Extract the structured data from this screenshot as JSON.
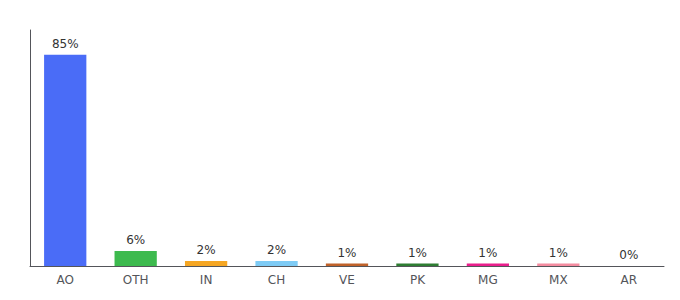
{
  "chart_data": {
    "type": "bar",
    "categories": [
      "AO",
      "OTH",
      "IN",
      "CH",
      "VE",
      "PK",
      "MG",
      "MX",
      "AR"
    ],
    "values": [
      85,
      6,
      2,
      2,
      1,
      1,
      1,
      1,
      0
    ],
    "value_labels": [
      "85%",
      "6%",
      "2%",
      "2%",
      "1%",
      "1%",
      "1%",
      "1%",
      "0%"
    ],
    "colors": [
      "#4a6cf7",
      "#3dba4e",
      "#f5a623",
      "#7ecbf5",
      "#c0622a",
      "#2e7d32",
      "#e91e8c",
      "#f48ca0",
      "#aaaaaa"
    ],
    "ylim": [
      0,
      95
    ],
    "data_labels": true,
    "tick_labels": "x",
    "grid": false
  }
}
